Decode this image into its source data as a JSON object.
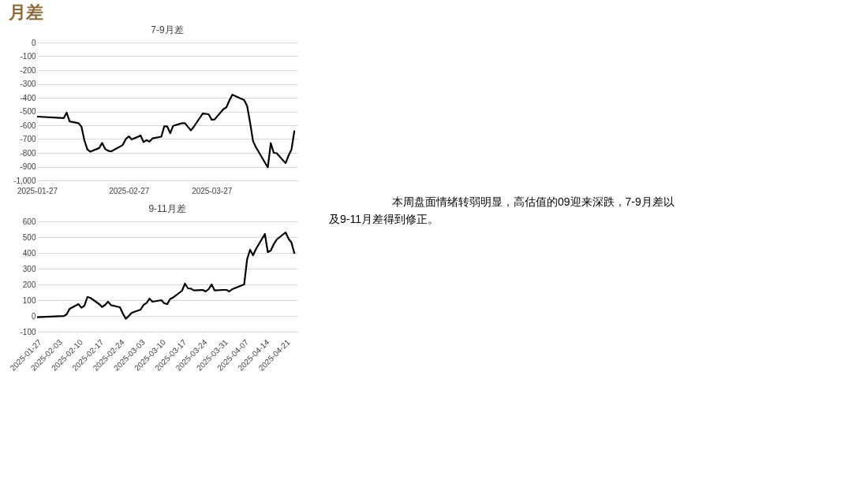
{
  "chart_data": [
    {
      "type": "line",
      "title": "7-9月差",
      "annotations": [
        "月差",
        "本周盘面情绪转弱明显，高估值的09迎来深跌，7-9月差以及9-11月差得到修正。"
      ],
      "x": [
        "2025-01-27",
        "2025-02-05",
        "2025-02-06",
        "2025-02-07",
        "2025-02-10",
        "2025-02-11",
        "2025-02-12",
        "2025-02-13",
        "2025-02-14",
        "2025-02-17",
        "2025-02-18",
        "2025-02-19",
        "2025-02-20",
        "2025-02-21",
        "2025-02-24",
        "2025-02-25",
        "2025-02-26",
        "2025-02-27",
        "2025-02-28",
        "2025-03-03",
        "2025-03-04",
        "2025-03-05",
        "2025-03-06",
        "2025-03-07",
        "2025-03-10",
        "2025-03-11",
        "2025-03-12",
        "2025-03-13",
        "2025-03-14",
        "2025-03-17",
        "2025-03-18",
        "2025-03-19",
        "2025-03-20",
        "2025-03-21",
        "2025-03-24",
        "2025-03-25",
        "2025-03-26",
        "2025-03-27",
        "2025-03-28",
        "2025-03-31",
        "2025-04-01",
        "2025-04-02",
        "2025-04-03",
        "2025-04-07",
        "2025-04-08",
        "2025-04-09",
        "2025-04-10",
        "2025-04-11",
        "2025-04-14",
        "2025-04-15",
        "2025-04-16",
        "2025-04-17",
        "2025-04-18",
        "2025-04-21",
        "2025-04-22",
        "2025-04-23",
        "2025-04-24"
      ],
      "series": [
        {
          "color": "#000000",
          "values": [
            -537,
            -548,
            -508,
            -572,
            -585,
            -610,
            -710,
            -775,
            -792,
            -765,
            -728,
            -772,
            -785,
            -790,
            -755,
            -742,
            -700,
            -680,
            -703,
            -675,
            -722,
            -708,
            -718,
            -695,
            -683,
            -607,
            -608,
            -658,
            -604,
            -585,
            -585,
            -612,
            -637,
            -610,
            -515,
            -517,
            -520,
            -560,
            -558,
            -483,
            -470,
            -420,
            -378,
            -417,
            -460,
            -580,
            -715,
            -760,
            -870,
            -905,
            -730,
            -800,
            -803,
            -875,
            -820,
            -775,
            -638
          ]
        }
      ],
      "xlim": [
        "2025-01-27",
        "2025-04-25"
      ],
      "xticks": [
        "2025-01-27",
        "2025-02-27",
        "2025-03-27"
      ],
      "ylim": [
        -1000,
        0
      ],
      "yticks": [
        0,
        -100,
        -200,
        -300,
        -400,
        -500,
        -600,
        -700,
        -800,
        -900,
        {
          "value": -1000,
          "label": "-1,000"
        }
      ],
      "grid": "y",
      "legend": false
    },
    {
      "type": "line",
      "title": "9-11月差",
      "x": [
        "2025-01-27",
        "2025-02-05",
        "2025-02-06",
        "2025-02-07",
        "2025-02-10",
        "2025-02-11",
        "2025-02-12",
        "2025-02-13",
        "2025-02-14",
        "2025-02-17",
        "2025-02-18",
        "2025-02-19",
        "2025-02-20",
        "2025-02-21",
        "2025-02-24",
        "2025-02-25",
        "2025-02-26",
        "2025-02-27",
        "2025-02-28",
        "2025-03-03",
        "2025-03-04",
        "2025-03-05",
        "2025-03-06",
        "2025-03-07",
        "2025-03-10",
        "2025-03-11",
        "2025-03-12",
        "2025-03-13",
        "2025-03-14",
        "2025-03-17",
        "2025-03-18",
        "2025-03-19",
        "2025-03-20",
        "2025-03-21",
        "2025-03-24",
        "2025-03-25",
        "2025-03-26",
        "2025-03-27",
        "2025-03-28",
        "2025-03-31",
        "2025-04-01",
        "2025-04-02",
        "2025-04-03",
        "2025-04-07",
        "2025-04-08",
        "2025-04-09",
        "2025-04-10",
        "2025-04-11",
        "2025-04-14",
        "2025-04-15",
        "2025-04-16",
        "2025-04-17",
        "2025-04-18",
        "2025-04-21",
        "2025-04-22",
        "2025-04-23",
        "2025-04-24"
      ],
      "series": [
        {
          "color": "#000000",
          "values": [
            -8,
            -1,
            10,
            45,
            75,
            52,
            65,
            120,
            115,
            75,
            57,
            70,
            90,
            68,
            55,
            15,
            -18,
            0,
            20,
            40,
            70,
            82,
            110,
            90,
            100,
            80,
            75,
            108,
            117,
            160,
            205,
            175,
            173,
            162,
            165,
            155,
            170,
            200,
            162,
            165,
            165,
            155,
            170,
            200,
            360,
            420,
            385,
            425,
            520,
            405,
            415,
            455,
            485,
            530,
            490,
            465,
            395
          ]
        }
      ],
      "xlim": [
        "2025-01-27",
        "2025-04-25"
      ],
      "xticks": [
        "2025-01-27",
        "2025-02-03",
        "2025-02-10",
        "2025-02-17",
        "2025-02-24",
        "2025-03-03",
        "2025-03-10",
        "2025-03-17",
        "2025-03-24",
        "2025-03-31",
        "2025-04-07",
        "2025-04-14",
        "2025-04-21"
      ],
      "ylim": [
        -100,
        600
      ],
      "yticks": [
        -100,
        0,
        100,
        200,
        300,
        400,
        500,
        600
      ],
      "grid": "y",
      "legend": false
    }
  ]
}
